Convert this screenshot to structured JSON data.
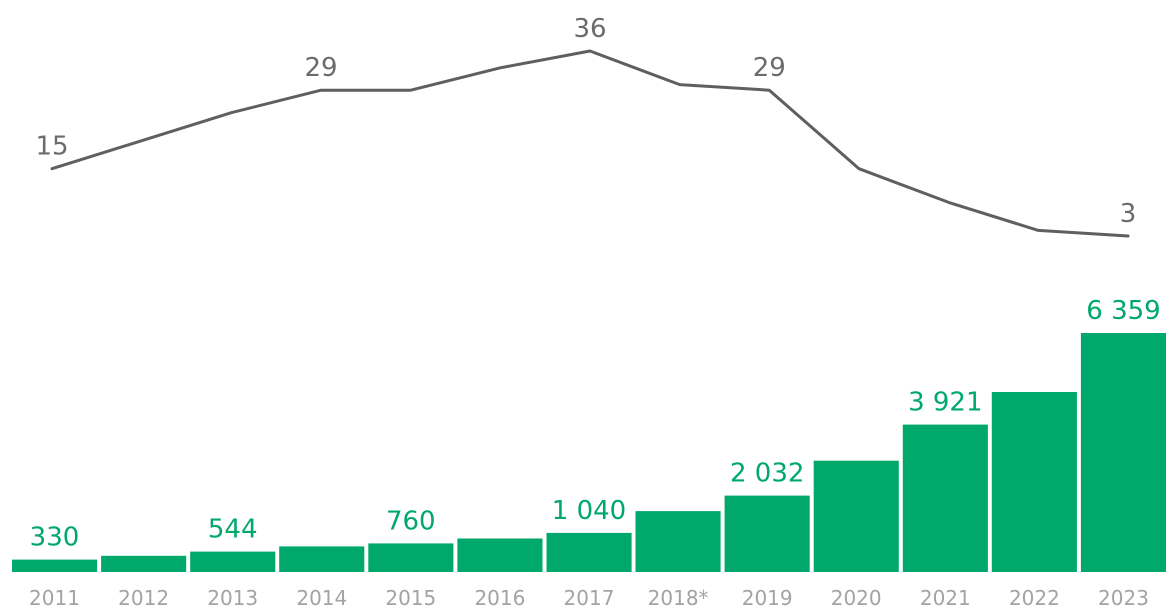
{
  "chart_data": [
    {
      "type": "line",
      "x": [
        "2011",
        "2012",
        "2013",
        "2014",
        "2015",
        "2016",
        "2017",
        "2018*",
        "2019",
        "2020",
        "2021",
        "2022",
        "2023"
      ],
      "values": [
        15,
        20,
        25,
        29,
        29,
        33,
        36,
        30,
        29,
        15,
        9,
        4,
        3
      ],
      "point_labels": [
        {
          "index": 0,
          "text": "15"
        },
        {
          "index": 3,
          "text": "29"
        },
        {
          "index": 6,
          "text": "36"
        },
        {
          "index": 8,
          "text": "29"
        },
        {
          "index": 12,
          "text": "3"
        }
      ],
      "color": "#5f5f5f",
      "grid": false
    },
    {
      "type": "bar",
      "categories": [
        "2011",
        "2012",
        "2013",
        "2014",
        "2015",
        "2016",
        "2017",
        "2018*",
        "2019",
        "2020",
        "2021",
        "2022",
        "2023"
      ],
      "values": [
        330,
        430,
        544,
        680,
        760,
        890,
        1040,
        1620,
        2032,
        2960,
        3921,
        4790,
        6359
      ],
      "bar_labels": [
        {
          "index": 0,
          "text": "330"
        },
        {
          "index": 2,
          "text": "544"
        },
        {
          "index": 4,
          "text": "760"
        },
        {
          "index": 6,
          "text": "1 040"
        },
        {
          "index": 8,
          "text": "2 032"
        },
        {
          "index": 10,
          "text": "3 921"
        },
        {
          "index": 12,
          "text": "6 359"
        }
      ],
      "ylim": [
        0,
        6359
      ],
      "color": "#00a86b",
      "grid": false
    }
  ]
}
